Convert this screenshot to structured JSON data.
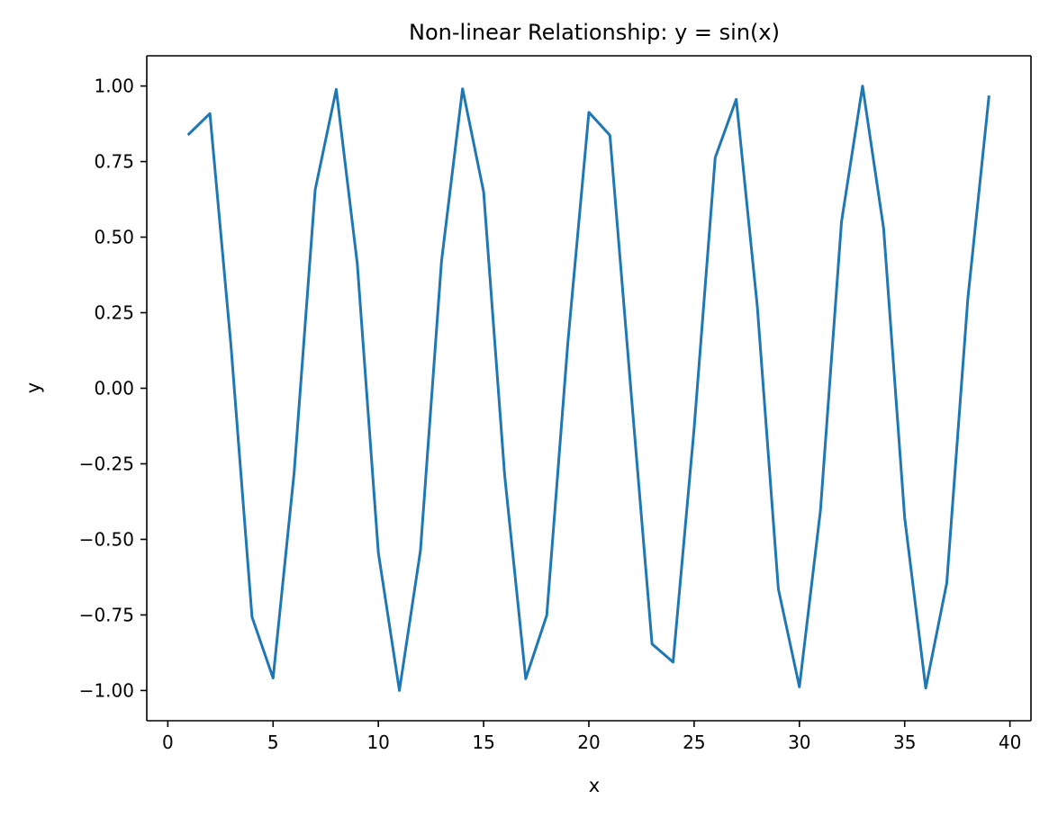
{
  "chart_data": {
    "type": "line",
    "title": "Non-linear Relationship: y = sin(x)",
    "xlabel": "x",
    "ylabel": "y",
    "xlim": [
      -1,
      41
    ],
    "ylim": [
      -1.1,
      1.1
    ],
    "xticks": [
      0,
      5,
      10,
      15,
      20,
      25,
      30,
      35,
      40
    ],
    "xtick_labels": [
      "0",
      "5",
      "10",
      "15",
      "20",
      "25",
      "30",
      "35",
      "40"
    ],
    "yticks": [
      1.0,
      0.75,
      0.5,
      0.25,
      0.0,
      -0.25,
      -0.5,
      -0.75,
      -1.0
    ],
    "ytick_labels": [
      "1.00",
      "0.75",
      "0.50",
      "0.25",
      "0.00",
      "−0.25",
      "−0.50",
      "−0.75",
      "−1.00"
    ],
    "grid": false,
    "legend": "none",
    "series": [
      {
        "color": "#1f77b4",
        "x": [
          1,
          2,
          3,
          4,
          5,
          6,
          7,
          8,
          9,
          10,
          11,
          12,
          13,
          14,
          15,
          16,
          17,
          18,
          19,
          20,
          21,
          22,
          23,
          24,
          25,
          26,
          27,
          28,
          29,
          30,
          31,
          32,
          33,
          34,
          35,
          36,
          37,
          38,
          39
        ],
        "y": [
          0.841,
          0.909,
          0.141,
          -0.757,
          -0.959,
          -0.279,
          0.657,
          0.989,
          0.412,
          -0.544,
          -1.0,
          -0.537,
          0.42,
          0.991,
          0.65,
          -0.288,
          -0.961,
          -0.751,
          0.15,
          0.913,
          0.837,
          -0.009,
          -0.846,
          -0.906,
          -0.132,
          0.763,
          0.956,
          0.271,
          -0.664,
          -0.988,
          -0.404,
          0.551,
          1.0,
          0.529,
          -0.428,
          -0.992,
          -0.644,
          0.296,
          0.964
        ]
      }
    ]
  }
}
